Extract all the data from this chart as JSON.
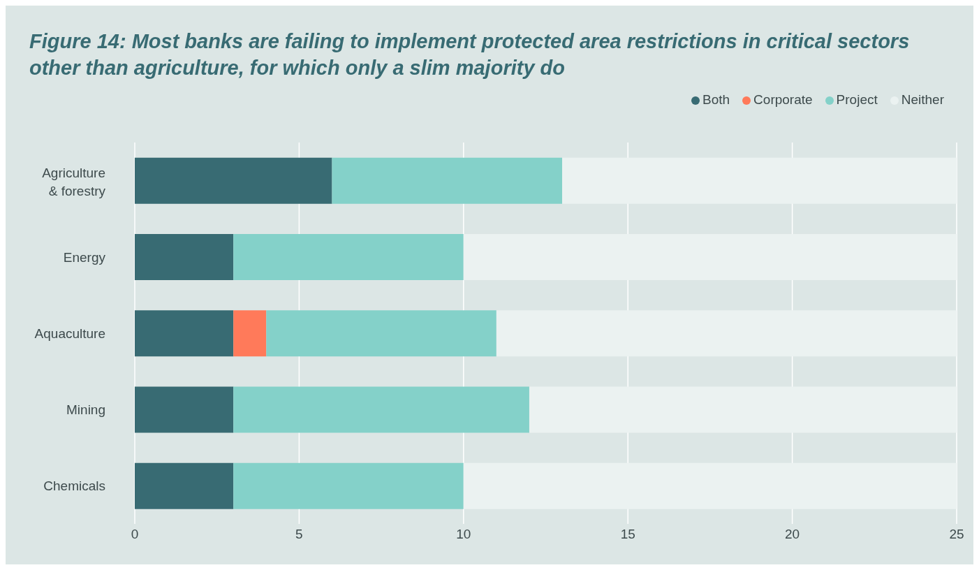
{
  "chart_data": {
    "type": "bar",
    "orientation": "horizontal",
    "stacked": true,
    "title": "Figure 14: Most banks are failing to implement protected area restrictions in critical sectors other than agriculture, for which only a slim majority do",
    "categories": [
      "Agriculture & forestry",
      "Energy",
      "Aquaculture",
      "Mining",
      "Chemicals"
    ],
    "series": [
      {
        "name": "Both",
        "color": "#386b73",
        "values": [
          6,
          3,
          3,
          3,
          3
        ]
      },
      {
        "name": "Corporate",
        "color": "#ff7a5a",
        "values": [
          0,
          0,
          1,
          0,
          0
        ]
      },
      {
        "name": "Project",
        "color": "#84d1c9",
        "values": [
          7,
          7,
          7,
          9,
          7
        ]
      },
      {
        "name": "Neither",
        "color": "#ebf2f1",
        "values": [
          12,
          15,
          14,
          13,
          15
        ]
      }
    ],
    "xlim": [
      0,
      25
    ],
    "xticks": [
      0,
      5,
      10,
      15,
      20,
      25
    ],
    "grid": "x",
    "legend": "top right"
  }
}
